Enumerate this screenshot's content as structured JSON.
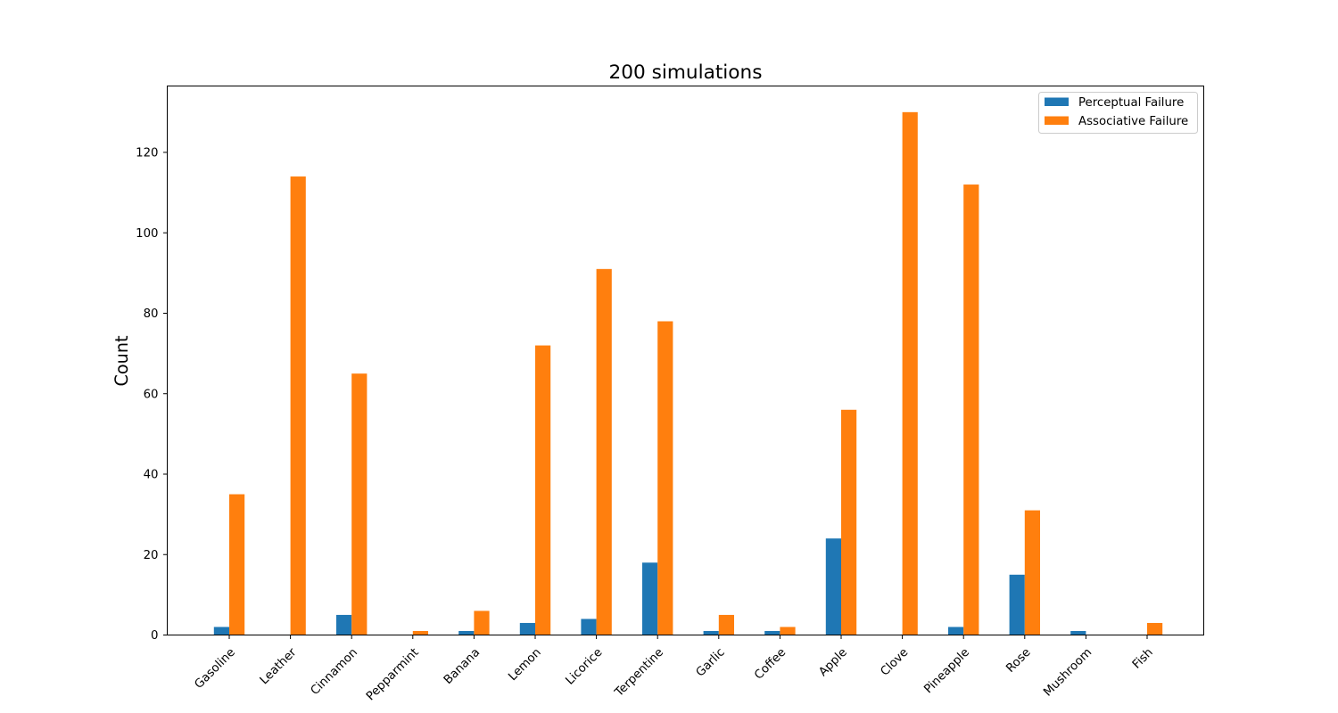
{
  "chart_data": {
    "type": "bar",
    "title": "200 simulations",
    "xlabel": "",
    "ylabel": "Count",
    "ylim": [
      0,
      136.5
    ],
    "yticks": [
      0,
      20,
      40,
      60,
      80,
      100,
      120
    ],
    "grid": false,
    "legend": "top-right",
    "categories": [
      "Gasoline",
      "Leather",
      "Cinnamon",
      "Pepparmint",
      "Banana",
      "Lemon",
      "Licorice",
      "Terpentine",
      "Garlic",
      "Coffee",
      "Apple",
      "Clove",
      "Pineapple",
      "Rose",
      "Mushroom",
      "Fish"
    ],
    "series": [
      {
        "name": "Perceptual Failure",
        "color": "#1f77b4",
        "values": [
          2,
          0,
          5,
          0,
          1,
          3,
          4,
          18,
          1,
          1,
          24,
          0,
          2,
          15,
          1,
          0
        ]
      },
      {
        "name": "Associative Failure",
        "color": "#ff7f0e",
        "values": [
          35,
          114,
          65,
          1,
          6,
          72,
          91,
          78,
          5,
          2,
          56,
          130,
          112,
          31,
          0,
          3
        ]
      }
    ]
  }
}
